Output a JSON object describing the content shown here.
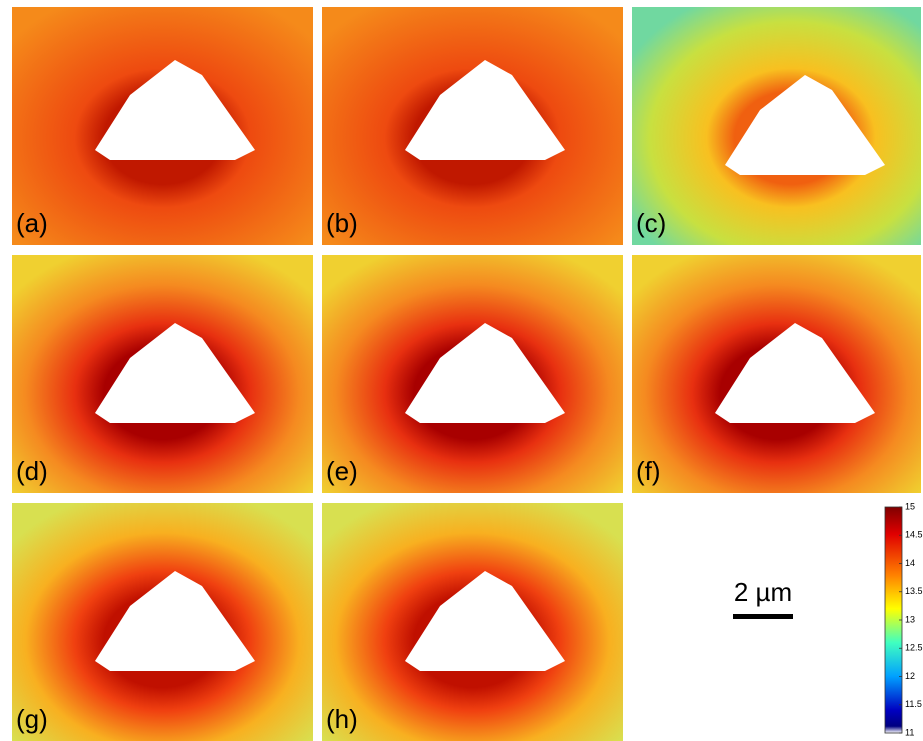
{
  "panels": [
    {
      "label": "(a)"
    },
    {
      "label": "(b)"
    },
    {
      "label": "(c)"
    },
    {
      "label": "(d)"
    },
    {
      "label": "(e)"
    },
    {
      "label": "(f)"
    },
    {
      "label": "(g)"
    },
    {
      "label": "(h)"
    }
  ],
  "scale_bar": {
    "label": "2 µm"
  },
  "colorbar": {
    "lim": [
      11,
      15
    ],
    "ticks": [
      11,
      11.5,
      12,
      12.5,
      13,
      13.5,
      14,
      14.5,
      15
    ]
  }
}
